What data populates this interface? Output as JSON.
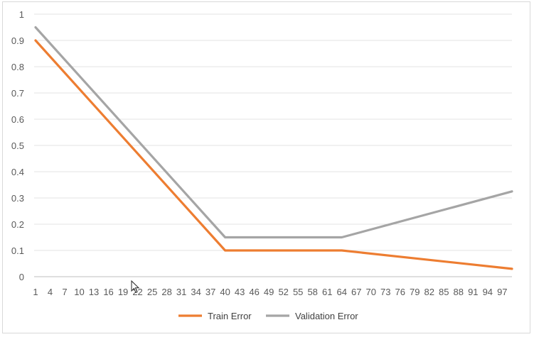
{
  "chart_data": {
    "type": "line",
    "title": "",
    "xlabel": "",
    "ylabel": "",
    "x_range": [
      1,
      99
    ],
    "ylim": [
      0,
      1
    ],
    "y_ticks": [
      "0",
      "0.1",
      "0.2",
      "0.3",
      "0.4",
      "0.5",
      "0.6",
      "0.7",
      "0.8",
      "0.9",
      "1"
    ],
    "x_ticks": [
      "1",
      "4",
      "7",
      "10",
      "13",
      "16",
      "19",
      "22",
      "25",
      "28",
      "31",
      "34",
      "37",
      "40",
      "43",
      "46",
      "49",
      "52",
      "55",
      "58",
      "61",
      "64",
      "67",
      "70",
      "73",
      "76",
      "79",
      "82",
      "85",
      "88",
      "91",
      "94",
      "97"
    ],
    "grid": "horizontal",
    "legend_position": "bottom",
    "series": [
      {
        "name": "Train Error",
        "color": "#ed7d31",
        "points": [
          [
            1,
            0.9
          ],
          [
            40,
            0.1
          ],
          [
            64,
            0.1
          ],
          [
            99,
            0.03
          ]
        ]
      },
      {
        "name": "Validation Error",
        "color": "#a5a5a5",
        "points": [
          [
            1,
            0.95
          ],
          [
            40,
            0.15
          ],
          [
            64,
            0.15
          ],
          [
            99,
            0.325
          ]
        ]
      }
    ]
  }
}
